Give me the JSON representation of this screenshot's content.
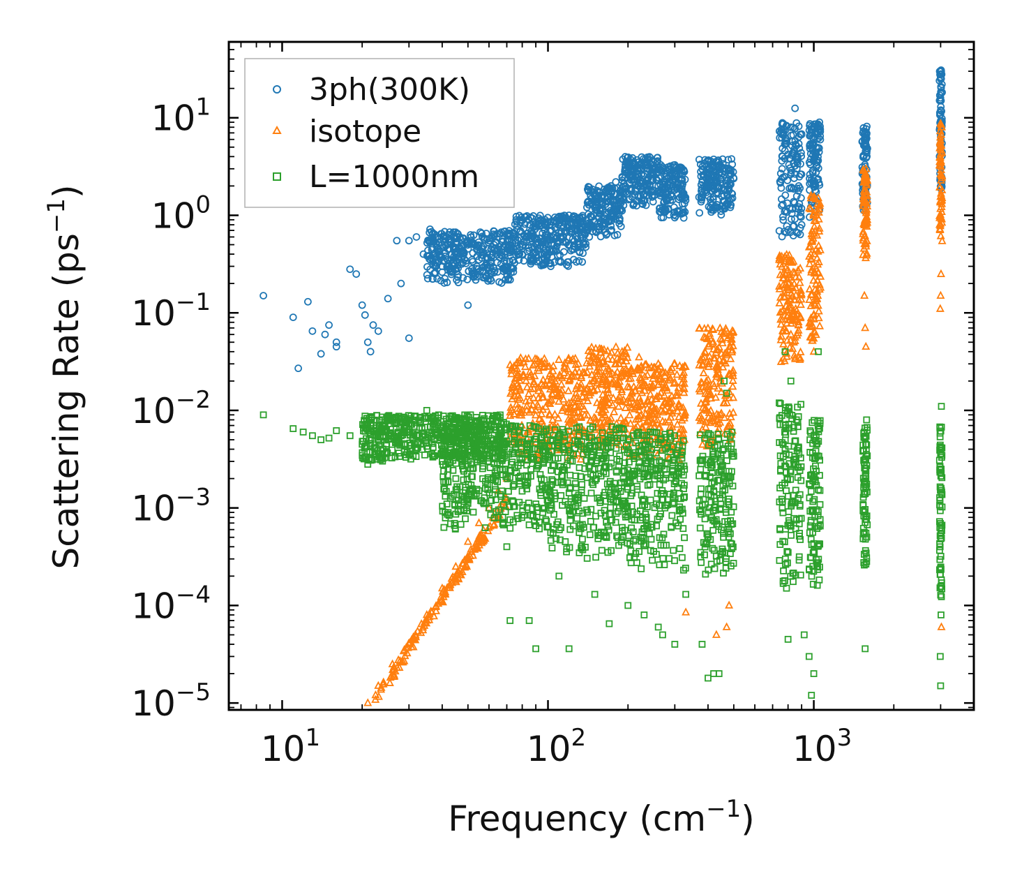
{
  "chart_data": {
    "type": "scatter",
    "title": "",
    "xlabel": "Frequency (cm",
    "xlabel_exp": "−1",
    "xlabel_end": ")",
    "ylabel": "Scattering Rate (ps",
    "ylabel_exp": "−1",
    "ylabel_end": ")",
    "xscale": "log",
    "yscale": "log",
    "xlim": [
      6.3,
      4000
    ],
    "ylim": [
      8.5e-06,
      60
    ],
    "x_ticks": [
      {
        "value": 10,
        "base": "10",
        "exp": "1"
      },
      {
        "value": 100,
        "base": "10",
        "exp": "2"
      },
      {
        "value": 1000,
        "base": "10",
        "exp": "3"
      }
    ],
    "y_ticks": [
      {
        "value": 1e-05,
        "base": "10",
        "exp": "−5"
      },
      {
        "value": 0.0001,
        "base": "10",
        "exp": "−4"
      },
      {
        "value": 0.001,
        "base": "10",
        "exp": "−3"
      },
      {
        "value": 0.01,
        "base": "10",
        "exp": "−2"
      },
      {
        "value": 0.1,
        "base": "10",
        "exp": "−1"
      },
      {
        "value": 1,
        "base": "10",
        "exp": "0"
      },
      {
        "value": 10,
        "base": "10",
        "exp": "1"
      }
    ],
    "legend_position": "top-left",
    "series": [
      {
        "name": "3ph(300K)",
        "marker": "circle",
        "color": "#1f77b4",
        "points": [
          [
            8.5,
            0.15
          ],
          [
            11,
            0.09
          ],
          [
            11.5,
            0.027
          ],
          [
            12.5,
            0.13
          ],
          [
            13,
            0.065
          ],
          [
            14,
            0.038
          ],
          [
            14.5,
            0.06
          ],
          [
            15,
            0.075
          ],
          [
            16,
            0.045
          ],
          [
            16,
            0.05
          ],
          [
            18,
            0.28
          ],
          [
            19,
            0.25
          ],
          [
            20,
            0.12
          ],
          [
            20.5,
            0.095
          ],
          [
            21,
            0.05
          ],
          [
            21.5,
            0.04
          ],
          [
            22,
            0.075
          ],
          [
            23,
            0.065
          ],
          [
            25,
            0.14
          ],
          [
            27,
            0.55
          ],
          [
            28,
            0.2
          ],
          [
            30,
            0.55
          ],
          [
            30,
            0.055
          ],
          [
            32,
            0.6
          ],
          [
            34,
            0.4
          ],
          [
            36,
            0.72
          ],
          [
            38,
            0.5
          ],
          [
            40,
            0.3
          ],
          [
            45,
            0.45
          ],
          [
            50,
            0.12
          ],
          [
            55,
            0.35
          ],
          [
            60,
            0.55
          ],
          [
            65,
            0.45
          ],
          [
            70,
            0.3
          ],
          [
            80,
            0.4
          ],
          [
            90,
            0.5
          ],
          [
            100,
            0.6
          ],
          [
            110,
            0.9
          ],
          [
            120,
            0.5
          ],
          [
            130,
            0.8
          ],
          [
            150,
            1.2
          ],
          [
            160,
            1.6
          ],
          [
            180,
            2.2
          ],
          [
            200,
            2.8
          ],
          [
            210,
            3.5
          ],
          [
            220,
            2.5
          ],
          [
            240,
            1.8
          ],
          [
            260,
            2.0
          ],
          [
            280,
            1.7
          ],
          [
            300,
            2.5
          ],
          [
            310,
            2.9
          ],
          [
            320,
            2.6
          ],
          [
            380,
            2.2
          ],
          [
            400,
            2.6
          ],
          [
            420,
            2.0
          ],
          [
            450,
            1.9
          ],
          [
            480,
            1.8
          ],
          [
            760,
            3.0
          ],
          [
            790,
            5.5
          ],
          [
            820,
            8.0
          ],
          [
            850,
            12.5
          ],
          [
            870,
            4.0
          ],
          [
            900,
            0.8
          ],
          [
            1000,
            6.0
          ],
          [
            1050,
            9.0
          ],
          [
            1530,
            7.0
          ],
          [
            1580,
            1.5
          ],
          [
            2990,
            30.0
          ],
          [
            3000,
            8.0
          ],
          [
            3020,
            2.5
          ]
        ],
        "bands": [
          [
            35,
            75,
            0.2,
            0.7
          ],
          [
            75,
            140,
            0.3,
            1.0
          ],
          [
            140,
            190,
            0.6,
            2.0
          ],
          [
            190,
            260,
            1.2,
            4.0
          ],
          [
            260,
            330,
            0.9,
            3.3
          ],
          [
            370,
            500,
            1.0,
            3.8
          ],
          [
            740,
            900,
            0.6,
            9.0
          ],
          [
            960,
            1060,
            0.9,
            9.0
          ],
          [
            1520,
            1590,
            1.0,
            8.2
          ],
          [
            2970,
            3040,
            1.8,
            32.0
          ]
        ]
      },
      {
        "name": "isotope",
        "marker": "triangle",
        "color": "#ff7f0e",
        "points": [
          [
            21,
            1e-05
          ],
          [
            23,
            1.5e-05
          ],
          [
            26,
            2.5e-05
          ],
          [
            30,
            4e-05
          ],
          [
            35,
            8e-05
          ],
          [
            40,
            0.00015
          ],
          [
            45,
            0.00025
          ],
          [
            50,
            0.00045
          ],
          [
            55,
            0.0007
          ],
          [
            60,
            0.001
          ],
          [
            65,
            0.0015
          ],
          [
            70,
            0.002
          ],
          [
            78,
            0.006
          ],
          [
            90,
            0.01
          ],
          [
            100,
            0.012
          ],
          [
            130,
            0.03
          ],
          [
            150,
            0.035
          ],
          [
            190,
            0.04
          ],
          [
            220,
            0.035
          ],
          [
            260,
            0.03
          ],
          [
            300,
            0.03
          ],
          [
            330,
            8.5e-05
          ],
          [
            430,
            5e-05
          ],
          [
            470,
            6e-05
          ],
          [
            480,
            0.0001
          ],
          [
            780,
            0.25
          ],
          [
            800,
            0.18
          ],
          [
            820,
            0.06
          ],
          [
            1000,
            0.04
          ],
          [
            1010,
            0.3
          ],
          [
            1020,
            1.0
          ],
          [
            1040,
            1.5
          ],
          [
            1550,
            0.15
          ],
          [
            1560,
            0.07
          ],
          [
            1570,
            0.045
          ],
          [
            1580,
            2.5
          ],
          [
            2990,
            0.11
          ],
          [
            3000,
            0.15
          ],
          [
            3010,
            0.25
          ],
          [
            3020,
            6e-05
          ],
          [
            3030,
            8.0
          ]
        ],
        "bands": [
          [
            22,
            70,
            1e-05,
            0.0012,
            "line"
          ],
          [
            72,
            140,
            0.003,
            0.035
          ],
          [
            140,
            200,
            0.004,
            0.045
          ],
          [
            200,
            330,
            0.003,
            0.03
          ],
          [
            370,
            500,
            0.004,
            0.07
          ],
          [
            740,
            900,
            0.03,
            0.4
          ],
          [
            960,
            1060,
            0.05,
            1.6
          ],
          [
            1530,
            1590,
            0.3,
            3.0
          ],
          [
            2970,
            3040,
            0.5,
            9.0
          ]
        ]
      },
      {
        "name": "L=1000nm",
        "marker": "square",
        "color": "#2ca02c",
        "points": [
          [
            8.5,
            0.009
          ],
          [
            11,
            0.0065
          ],
          [
            12,
            0.006
          ],
          [
            13,
            0.0055
          ],
          [
            14,
            0.005
          ],
          [
            15,
            0.0052
          ],
          [
            16,
            0.0062
          ],
          [
            18,
            0.0055
          ],
          [
            20,
            0.0045
          ],
          [
            21,
            0.0028
          ],
          [
            23,
            0.005
          ],
          [
            25,
            0.008
          ],
          [
            30,
            0.0035
          ],
          [
            35,
            0.01
          ],
          [
            40,
            0.003
          ],
          [
            45,
            0.002
          ],
          [
            50,
            0.0012
          ],
          [
            55,
            0.0015
          ],
          [
            60,
            0.001
          ],
          [
            65,
            0.0008
          ],
          [
            70,
            0.0004
          ],
          [
            72,
            7e-05
          ],
          [
            85,
            7e-05
          ],
          [
            90,
            3.6e-05
          ],
          [
            110,
            0.0002
          ],
          [
            120,
            3.6e-05
          ],
          [
            150,
            0.00013
          ],
          [
            170,
            6.5e-05
          ],
          [
            200,
            0.0001
          ],
          [
            230,
            8e-05
          ],
          [
            260,
            6e-05
          ],
          [
            270,
            5e-05
          ],
          [
            300,
            4e-05
          ],
          [
            330,
            0.00013
          ],
          [
            380,
            4e-05
          ],
          [
            400,
            1.8e-05
          ],
          [
            420,
            2e-05
          ],
          [
            440,
            2e-05
          ],
          [
            460,
            0.02
          ],
          [
            470,
            0.015
          ],
          [
            780,
            0.04
          ],
          [
            800,
            4.5e-05
          ],
          [
            820,
            0.02
          ],
          [
            860,
            0.008
          ],
          [
            920,
            5e-05
          ],
          [
            960,
            3e-05
          ],
          [
            980,
            1.2e-05
          ],
          [
            1000,
            2e-05
          ],
          [
            1040,
            0.04
          ],
          [
            1560,
            3.6e-05
          ],
          [
            1580,
            0.008
          ],
          [
            2990,
            3e-05
          ],
          [
            3000,
            1.5e-05
          ],
          [
            3010,
            8e-05
          ],
          [
            3020,
            0.011
          ]
        ],
        "bands": [
          [
            20,
            70,
            0.003,
            0.009
          ],
          [
            40,
            100,
            0.0006,
            0.007
          ],
          [
            100,
            200,
            0.0003,
            0.007
          ],
          [
            200,
            330,
            0.0002,
            0.006
          ],
          [
            370,
            500,
            0.0002,
            0.006
          ],
          [
            740,
            900,
            0.00015,
            0.012
          ],
          [
            960,
            1060,
            0.00015,
            0.008
          ],
          [
            1530,
            1590,
            0.0002,
            0.007
          ],
          [
            2970,
            3040,
            0.00012,
            0.007
          ]
        ]
      }
    ]
  }
}
